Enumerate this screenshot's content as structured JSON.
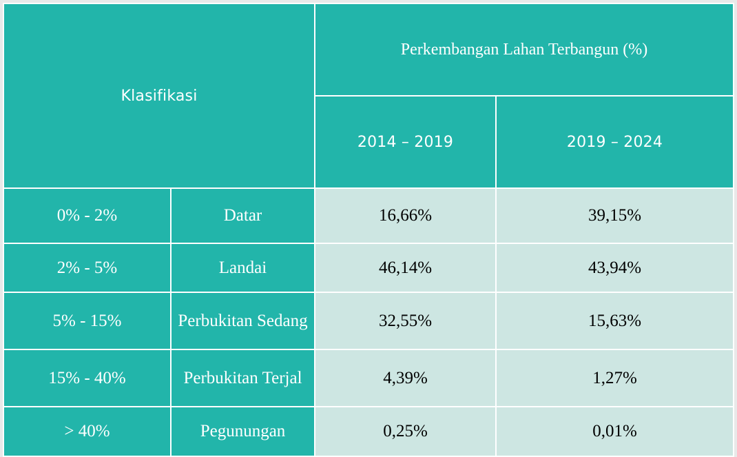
{
  "header": {
    "klasifikasi": "Klasifikasi",
    "group_title": "Perkembangan Lahan Terbangun (%)",
    "period_1": "2014 – 2019",
    "period_2": "2019 – 2024"
  },
  "rows": [
    {
      "slope": "0% - 2%",
      "class": "Datar",
      "v1": "16,66%",
      "v2": "39,15%"
    },
    {
      "slope": "2% - 5%",
      "class": "Landai",
      "v1": "46,14%",
      "v2": "43,94%"
    },
    {
      "slope": "5% - 15%",
      "class": "Perbukitan Sedang",
      "v1": "32,55%",
      "v2": "15,63%"
    },
    {
      "slope": "15% - 40%",
      "class": "Perbukitan Terjal",
      "v1": "4,39%",
      "v2": "1,27%"
    },
    {
      "slope": "> 40%",
      "class": "Pegunungan",
      "v1": "0,25%",
      "v2": "0,01%"
    }
  ],
  "colors": {
    "header_bg": "#22b5aa",
    "label_bg": "#22b5aa",
    "value_bg": "#cde6e2",
    "border": "#ffffff"
  }
}
